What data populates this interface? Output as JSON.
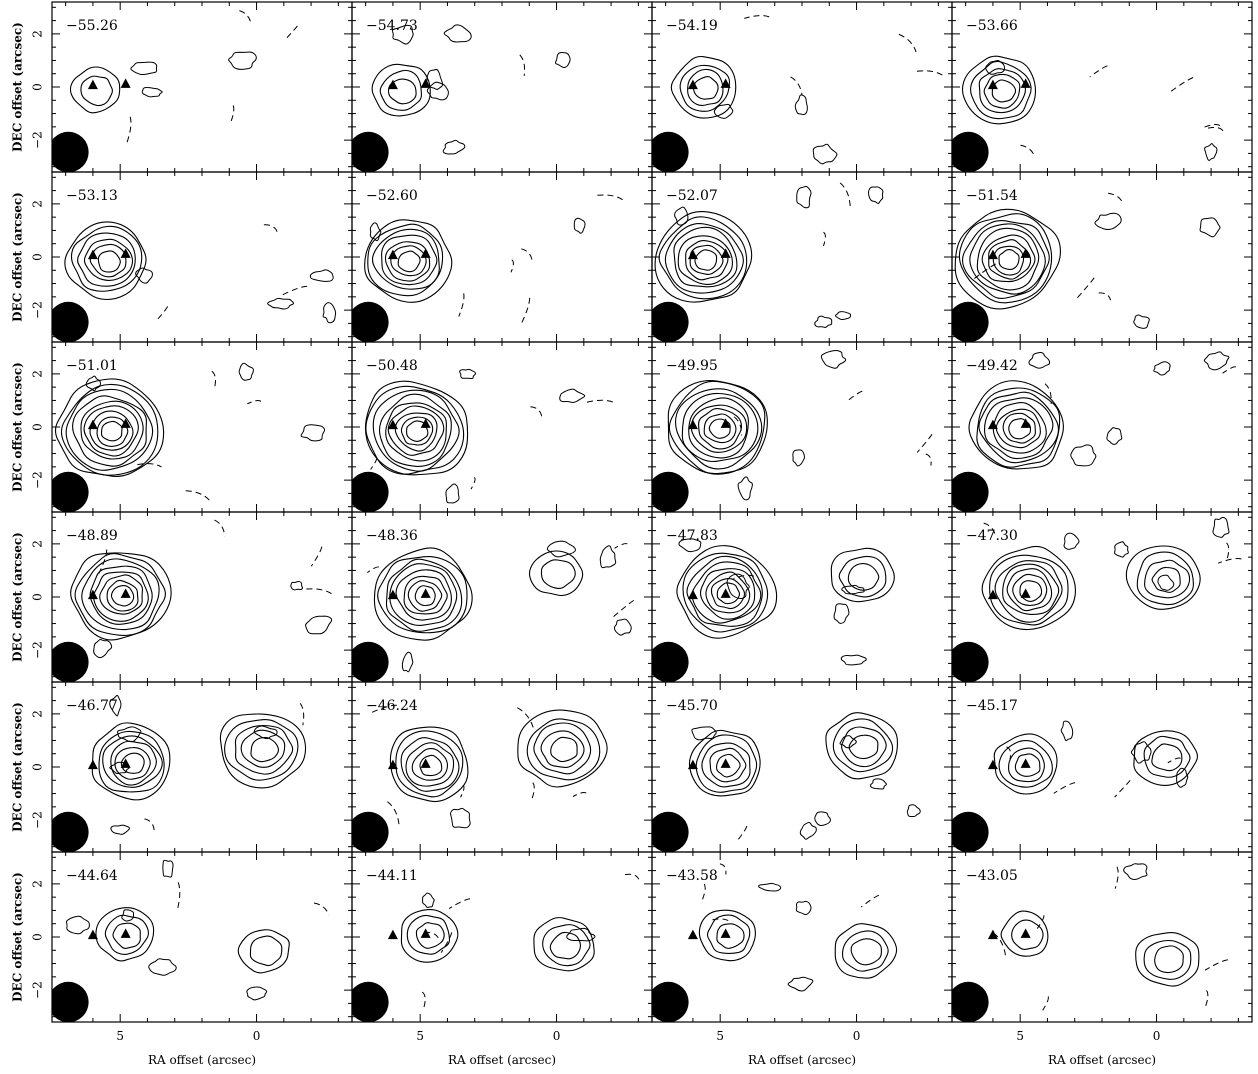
{
  "chart_data": {
    "type": "contour",
    "grid": {
      "rows": 6,
      "cols": 4
    },
    "xlabel": "RA offset (arcsec)",
    "ylabel": "DEC offset (arcsec)",
    "xlim": [
      7.5,
      -3.5
    ],
    "ylim": [
      -3.2,
      3.2
    ],
    "x_ticks": [
      "5",
      "0"
    ],
    "y_ticks": [
      "2",
      "0",
      "−2"
    ],
    "x_tick_values": [
      5,
      0
    ],
    "y_tick_values": [
      2,
      0,
      -2
    ],
    "markers": [
      {
        "x": 6.0,
        "y": 0.05
      },
      {
        "x": 4.8,
        "y": 0.1
      }
    ],
    "beam": {
      "x": 6.9,
      "y": -2.45,
      "major": 0.9
    },
    "panels": [
      {
        "velocity": "−55.26",
        "source_a": {
          "x": 5.9,
          "y": -0.1,
          "levels": 2
        },
        "source_b": null
      },
      {
        "velocity": "−54.73",
        "source_a": {
          "x": 5.7,
          "y": -0.1,
          "levels": 3
        },
        "source_b": null
      },
      {
        "velocity": "−54.19",
        "source_a": {
          "x": 5.6,
          "y": 0.0,
          "levels": 4
        },
        "source_b": null
      },
      {
        "velocity": "−53.66",
        "source_a": {
          "x": 5.7,
          "y": -0.1,
          "levels": 5
        },
        "source_b": null
      },
      {
        "velocity": "−53.13",
        "source_a": {
          "x": 5.5,
          "y": -0.1,
          "levels": 6
        },
        "source_b": null
      },
      {
        "velocity": "−52.60",
        "source_a": {
          "x": 5.5,
          "y": -0.1,
          "levels": 7
        },
        "source_b": null
      },
      {
        "velocity": "−52.07",
        "source_a": {
          "x": 5.6,
          "y": -0.05,
          "levels": 8
        },
        "source_b": null
      },
      {
        "velocity": "−51.54",
        "source_a": {
          "x": 5.5,
          "y": -0.05,
          "levels": 9
        },
        "source_b": null
      },
      {
        "velocity": "−51.01",
        "source_a": {
          "x": 5.4,
          "y": -0.1,
          "levels": 9
        },
        "source_b": null
      },
      {
        "velocity": "−50.48",
        "source_a": {
          "x": 5.2,
          "y": -0.1,
          "levels": 9
        },
        "source_b": null
      },
      {
        "velocity": "−49.95",
        "source_a": {
          "x": 5.1,
          "y": 0.0,
          "levels": 9
        },
        "source_b": null
      },
      {
        "velocity": "−49.42",
        "source_a": {
          "x": 5.1,
          "y": 0.0,
          "levels": 8
        },
        "source_b": null
      },
      {
        "velocity": "−48.89",
        "source_a": {
          "x": 5.0,
          "y": 0.1,
          "levels": 8
        },
        "source_b": null
      },
      {
        "velocity": "−48.36",
        "source_a": {
          "x": 4.9,
          "y": 0.1,
          "levels": 8
        },
        "source_b": {
          "x": 0.0,
          "y": 0.9,
          "levels": 2
        }
      },
      {
        "velocity": "−47.83",
        "source_a": {
          "x": 4.8,
          "y": 0.2,
          "levels": 8
        },
        "source_b": {
          "x": -0.2,
          "y": 0.8,
          "levels": 3
        }
      },
      {
        "velocity": "−47.30",
        "source_a": {
          "x": 4.7,
          "y": 0.3,
          "levels": 7
        },
        "source_b": {
          "x": -0.3,
          "y": 0.7,
          "levels": 4
        }
      },
      {
        "velocity": "−46.77",
        "source_a": {
          "x": 4.6,
          "y": 0.2,
          "levels": 6
        },
        "source_b": {
          "x": -0.2,
          "y": 0.7,
          "levels": 5
        }
      },
      {
        "velocity": "−46.24",
        "source_a": {
          "x": 4.7,
          "y": 0.1,
          "levels": 6
        },
        "source_b": {
          "x": -0.2,
          "y": 0.7,
          "levels": 5
        }
      },
      {
        "velocity": "−45.70",
        "source_a": {
          "x": 4.8,
          "y": 0.1,
          "levels": 5
        },
        "source_b": {
          "x": -0.2,
          "y": 0.8,
          "levels": 4
        }
      },
      {
        "velocity": "−45.17",
        "source_a": {
          "x": 4.8,
          "y": 0.1,
          "levels": 4
        },
        "source_b": {
          "x": -0.3,
          "y": 0.4,
          "levels": 3
        }
      },
      {
        "velocity": "−44.64",
        "source_a": {
          "x": 4.8,
          "y": 0.1,
          "levels": 3
        },
        "source_b": {
          "x": -0.3,
          "y": -0.5,
          "levels": 2
        }
      },
      {
        "velocity": "−44.11",
        "source_a": {
          "x": 4.7,
          "y": 0.1,
          "levels": 3
        },
        "source_b": {
          "x": -0.3,
          "y": -0.3,
          "levels": 3
        }
      },
      {
        "velocity": "−43.58",
        "source_a": {
          "x": 4.7,
          "y": 0.1,
          "levels": 3
        },
        "source_b": {
          "x": -0.3,
          "y": -0.5,
          "levels": 3
        }
      },
      {
        "velocity": "−43.05",
        "source_a": {
          "x": 4.8,
          "y": 0.1,
          "levels": 2
        },
        "source_b": {
          "x": -0.4,
          "y": -0.8,
          "levels": 3
        }
      }
    ]
  }
}
